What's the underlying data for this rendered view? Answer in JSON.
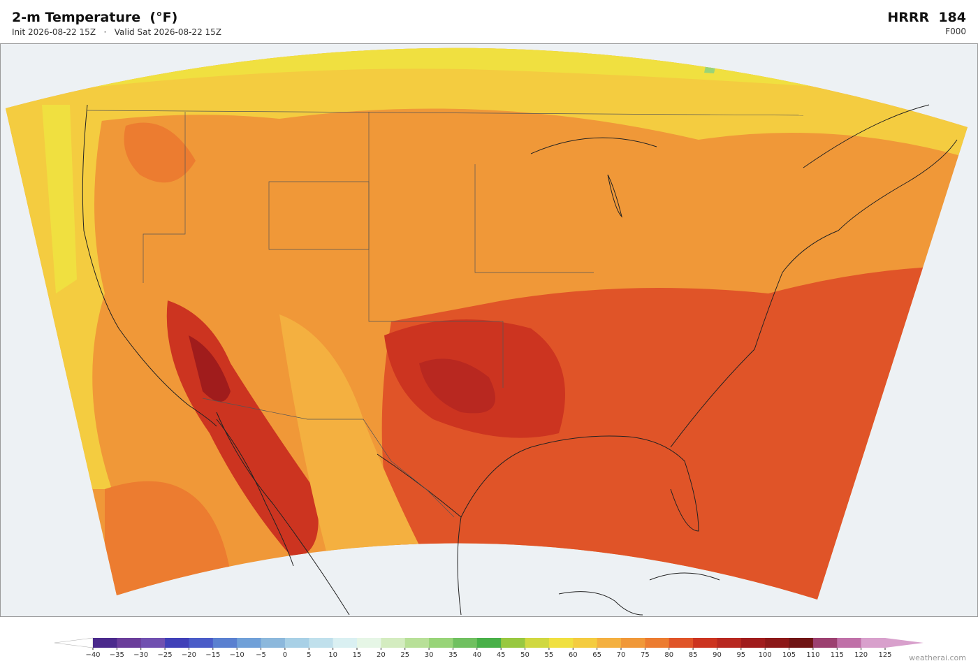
{
  "header": {
    "title": "2-m Temperature  (°F)",
    "subtitle": "Init 2026-08-22 15Z   ·   Valid Sat 2026-08-22 15Z",
    "model": "HRRR  184",
    "forecast_hour": "F000"
  },
  "colorbar": {
    "ticks": [
      {
        "value": -40,
        "label": "−40"
      },
      {
        "value": -35,
        "label": "−35"
      },
      {
        "value": -30,
        "label": "−30"
      },
      {
        "value": -25,
        "label": "−25"
      },
      {
        "value": -20,
        "label": "−20"
      },
      {
        "value": -15,
        "label": "−15"
      },
      {
        "value": -10,
        "label": "−10"
      },
      {
        "value": -5,
        "label": "−5"
      },
      0,
      5,
      10,
      15,
      20,
      25,
      30,
      35,
      40,
      45,
      50,
      55,
      60,
      65,
      70,
      75,
      80,
      85,
      90,
      95,
      100,
      105,
      110,
      115,
      120,
      125
    ],
    "colors": [
      "#4b2a8c",
      "#6a3d9a",
      "#7050b0",
      "#4040b8",
      "#4a5cc8",
      "#5a80d0",
      "#70a0d8",
      "#8cb8dc",
      "#a8d0e6",
      "#c0e0ec",
      "#daf0f2",
      "#e6f6e6",
      "#d4ecc0",
      "#b8e098",
      "#98d478",
      "#70c060",
      "#48b048",
      "#98c840",
      "#d0d840",
      "#f0e040",
      "#f4cc40",
      "#f4b040",
      "#f09838",
      "#ec7c30",
      "#e05428",
      "#cc3420",
      "#b82820",
      "#a01c1c",
      "#8c1818",
      "#701414",
      "#9c4070",
      "#c070a8",
      "#d8a0cc"
    ],
    "under_color": "#ffffff",
    "over_color": "#d8a0cc"
  },
  "footer": {
    "watermark": "weatherai.com"
  }
}
